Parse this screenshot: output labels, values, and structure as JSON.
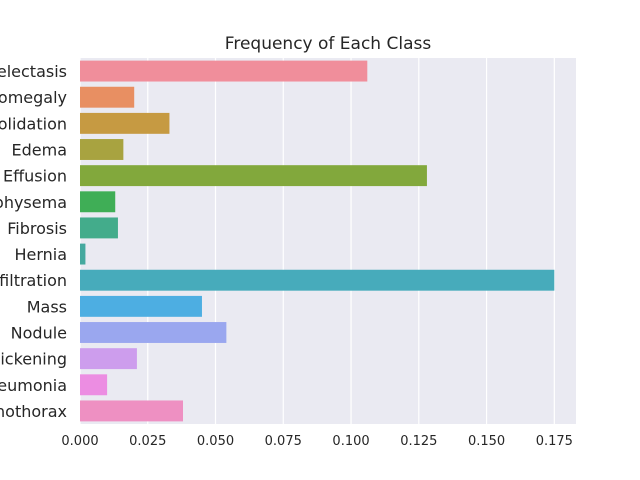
{
  "chart_data": {
    "type": "bar",
    "orientation": "horizontal",
    "title": "Frequency of Each Class",
    "xlabel": "",
    "ylabel": "",
    "categories": [
      "electasis",
      "omegaly",
      "olidation",
      "Edema",
      "Effusion",
      "physema",
      "Fibrosis",
      "Hernia",
      "filtration",
      "Mass",
      "Nodule",
      "ickening",
      "eumonia",
      "nothorax"
    ],
    "values": [
      0.106,
      0.02,
      0.033,
      0.016,
      0.128,
      0.013,
      0.014,
      0.002,
      0.175,
      0.045,
      0.054,
      0.021,
      0.01,
      0.038
    ],
    "xlim": [
      0,
      0.183
    ],
    "xticks": [
      0.0,
      0.025,
      0.05,
      0.075,
      0.1,
      0.125,
      0.15,
      0.175
    ],
    "xtick_labels": [
      "0.000",
      "0.025",
      "0.050",
      "0.075",
      "0.100",
      "0.125",
      "0.150",
      "0.175"
    ],
    "grid": true,
    "background_color": "#eaeaf2",
    "colors": [
      "#f08e9b",
      "#e88f62",
      "#c69a42",
      "#a8a340",
      "#82a83c",
      "#3fae56",
      "#43ac8b",
      "#45a99f",
      "#47abbb",
      "#4daee2",
      "#9aa7ef",
      "#cd9ded",
      "#ec8de2",
      "#ee90c2"
    ]
  }
}
